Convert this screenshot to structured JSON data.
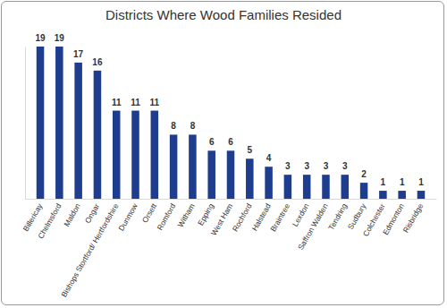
{
  "chart_data": {
    "type": "bar",
    "title": "Districts Where Wood Families Resided",
    "categories": [
      "Billericay",
      "Chelmsford",
      "Maldon",
      "Ongar",
      "Bishops Stortford/ Hertfordshire",
      "Dunmow",
      "Orsett",
      "Romford",
      "Witham",
      "Epping",
      "West Ham",
      "Rochford",
      "Halstead",
      "Braintree",
      "Lexdon",
      "Saffron Walden",
      "Tendring",
      "Sudbury",
      "Colchester",
      "Edmonton",
      "Risbridge"
    ],
    "values": [
      19,
      19,
      17,
      16,
      11,
      11,
      11,
      8,
      8,
      6,
      6,
      5,
      4,
      3,
      3,
      3,
      3,
      2,
      1,
      1,
      1
    ],
    "color": "#1f3d8f",
    "ylim": [
      0,
      19
    ],
    "data_labels": true,
    "tick_labels": "x"
  }
}
